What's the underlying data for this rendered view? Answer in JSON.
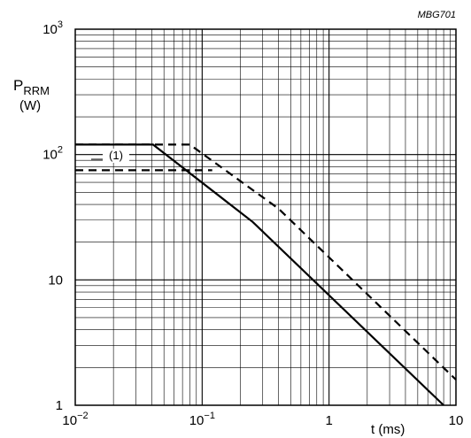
{
  "chart_data": {
    "type": "line",
    "reference_code": "MBG701",
    "ylabel_main": "P",
    "ylabel_sub": "RRM",
    "ylabel_unit": "(W)",
    "xlabel": "t (ms)",
    "x_scale": "log",
    "y_scale": "log",
    "xlim": [
      0.01,
      10
    ],
    "ylim": [
      1,
      1000
    ],
    "grid": true,
    "x_ticks": [
      {
        "value": 0.01,
        "base": "10",
        "exp": "−2",
        "plain": ""
      },
      {
        "value": 0.1,
        "base": "10",
        "exp": "−1",
        "plain": ""
      },
      {
        "value": 1,
        "base": "",
        "exp": "",
        "plain": "1"
      },
      {
        "value": 10,
        "base": "",
        "exp": "",
        "plain": "10"
      }
    ],
    "y_ticks": [
      {
        "value": 1,
        "base": "",
        "exp": "",
        "plain": "1"
      },
      {
        "value": 10,
        "base": "",
        "exp": "",
        "plain": "10"
      },
      {
        "value": 100,
        "base": "10",
        "exp": "2",
        "plain": ""
      },
      {
        "value": 1000,
        "base": "10",
        "exp": "3",
        "plain": ""
      }
    ],
    "annotation": {
      "text": "(1)",
      "x": 0.028,
      "y": 88
    },
    "series": [
      {
        "style": "solid",
        "points": [
          [
            0.01,
            120
          ],
          [
            0.041,
            120
          ],
          [
            0.25,
            29
          ],
          [
            8,
            1
          ]
        ]
      },
      {
        "style": "dashed",
        "points": [
          [
            0.01,
            120
          ],
          [
            0.08,
            120
          ],
          [
            0.4,
            37
          ],
          [
            10,
            1.6
          ]
        ]
      },
      {
        "style": "dashed",
        "points": [
          [
            0.01,
            75
          ],
          [
            0.12,
            75
          ]
        ]
      }
    ]
  }
}
